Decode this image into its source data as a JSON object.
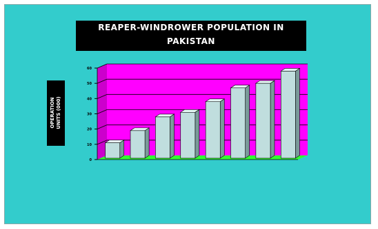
{
  "chart_data": {
    "type": "bar",
    "title_lines": [
      "REAPER-WINDROWER POPULATION IN",
      "PAKISTAN"
    ],
    "ylabel_lines": [
      "OPERATION",
      "UNITS (000)"
    ],
    "xlabel": "",
    "categories": [
      "",
      "",
      "",
      "",
      "",
      "",
      "",
      ""
    ],
    "values": [
      11,
      19,
      28,
      31,
      38,
      47,
      50,
      58
    ],
    "ylim": [
      0,
      60
    ],
    "yticks": [
      0,
      10,
      20,
      30,
      40,
      50,
      60
    ],
    "grid": true,
    "legend": "none",
    "colors": {
      "background": "#33cccc",
      "plot_wall": "#ff00ff",
      "floor": "#33ff33",
      "bar_front": "#c0dede",
      "bar_side": "#7a9a9a",
      "bar_top": "#e8f8f8",
      "title_box": "#000000",
      "title_text": "#ffffff"
    }
  }
}
